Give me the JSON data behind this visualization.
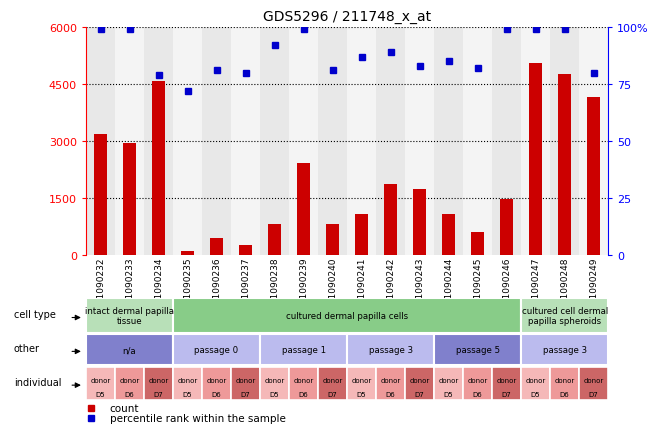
{
  "title": "GDS5296 / 211748_x_at",
  "samples": [
    "GSM1090232",
    "GSM1090233",
    "GSM1090234",
    "GSM1090235",
    "GSM1090236",
    "GSM1090237",
    "GSM1090238",
    "GSM1090239",
    "GSM1090240",
    "GSM1090241",
    "GSM1090242",
    "GSM1090243",
    "GSM1090244",
    "GSM1090245",
    "GSM1090246",
    "GSM1090247",
    "GSM1090248",
    "GSM1090249"
  ],
  "counts": [
    3180,
    2960,
    4580,
    115,
    450,
    265,
    830,
    2420,
    830,
    1090,
    1870,
    1730,
    1080,
    610,
    1490,
    5050,
    4760,
    4150
  ],
  "percentiles": [
    99,
    99,
    79,
    72,
    81,
    80,
    92,
    99,
    81,
    87,
    89,
    83,
    85,
    82,
    99,
    99,
    99,
    80
  ],
  "ylim_left": [
    0,
    6000
  ],
  "ylim_right": [
    0,
    100
  ],
  "yticks_left": [
    0,
    1500,
    3000,
    4500,
    6000
  ],
  "yticks_right": [
    0,
    25,
    50,
    75,
    100
  ],
  "bar_color": "#cc0000",
  "dot_color": "#0000cc",
  "chart_bg": "#ffffff",
  "cell_type_row": {
    "groups": [
      {
        "label": "intact dermal papilla\ntissue",
        "start": 0,
        "end": 3,
        "color": "#b8e0b8"
      },
      {
        "label": "cultured dermal papilla cells",
        "start": 3,
        "end": 15,
        "color": "#88cc88"
      },
      {
        "label": "cultured cell dermal\npapilla spheroids",
        "start": 15,
        "end": 18,
        "color": "#b8e0b8"
      }
    ]
  },
  "other_row": {
    "groups": [
      {
        "label": "n/a",
        "start": 0,
        "end": 3,
        "color": "#8080cc"
      },
      {
        "label": "passage 0",
        "start": 3,
        "end": 6,
        "color": "#bbbbee"
      },
      {
        "label": "passage 1",
        "start": 6,
        "end": 9,
        "color": "#bbbbee"
      },
      {
        "label": "passage 3",
        "start": 9,
        "end": 12,
        "color": "#bbbbee"
      },
      {
        "label": "passage 5",
        "start": 12,
        "end": 15,
        "color": "#8080cc"
      },
      {
        "label": "passage 3",
        "start": 15,
        "end": 18,
        "color": "#bbbbee"
      }
    ]
  },
  "individual_row": {
    "donors": [
      "D5",
      "D6",
      "D7",
      "D5",
      "D6",
      "D7",
      "D5",
      "D6",
      "D7",
      "D5",
      "D6",
      "D7",
      "D5",
      "D6",
      "D7",
      "D5",
      "D6",
      "D7"
    ],
    "color_D5": "#f5b8b8",
    "color_D6": "#ee9999",
    "color_D7": "#cc6666"
  },
  "legend_count_color": "#cc0000",
  "legend_dot_color": "#0000cc"
}
